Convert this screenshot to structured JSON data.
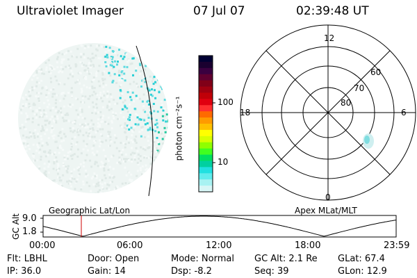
{
  "header": {
    "instrument": "Ultraviolet Imager",
    "date": "07 Jul 07",
    "time": "02:39:48 UT"
  },
  "colorbar": {
    "unit_label": "photon cm⁻²s⁻¹",
    "ticks": [
      "100",
      "10"
    ],
    "colors": [
      "#000033",
      "#1a0030",
      "#3a0040",
      "#600030",
      "#800018",
      "#a00010",
      "#c00008",
      "#e00010",
      "#ff3030",
      "#ff6a00",
      "#ff9a00",
      "#ffc000",
      "#ffff00",
      "#d8ff00",
      "#90ff00",
      "#40ff20",
      "#00e060",
      "#00d0a0",
      "#20e0e0",
      "#60ecec",
      "#a8f2f2",
      "#d8f6f6"
    ]
  },
  "polar": {
    "mlt_labels": [
      "12",
      "18",
      "6",
      "0"
    ],
    "lat_labels": [
      "60",
      "70",
      "80"
    ]
  },
  "timeline": {
    "ylabel": "GC Alt",
    "y_ticks": [
      "9.0",
      "1.8"
    ],
    "left_label": "Geographic Lat/Lon",
    "right_label": "Apex MLat/MLT",
    "x_ticks": [
      "00:00",
      "06:00",
      "12:00",
      "18:00",
      "23:59"
    ]
  },
  "info": {
    "filter": "Flt: LBHL",
    "ip": "IP: 36.0",
    "door": "Door: Open",
    "gain": "Gain: 14",
    "mode": "Mode: Normal",
    "dsp": "Dsp:    -8.2",
    "gc_alt": "GC Alt: 2.1 Re",
    "seq": "Seq: 39",
    "glat": "GLat:  67.4",
    "glon": "GLon:   12.9"
  }
}
